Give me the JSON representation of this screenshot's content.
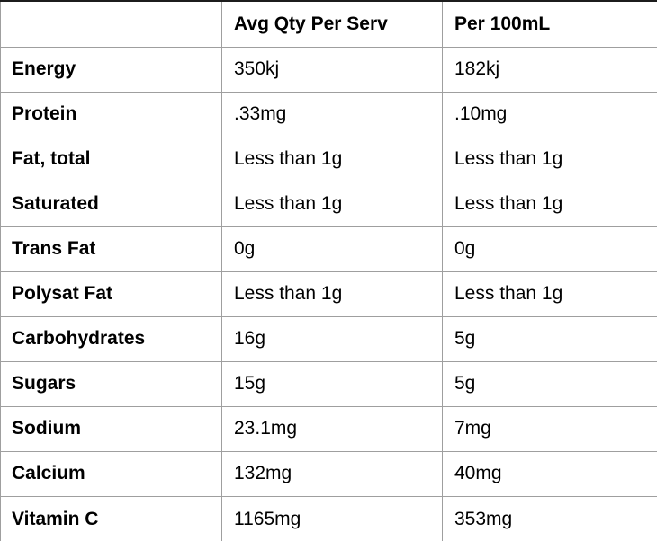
{
  "chart_data": {
    "type": "table",
    "columns": [
      "",
      "Avg Qty Per Serv",
      "Per 100mL"
    ],
    "rows": [
      {
        "label": "Energy",
        "values": [
          "350kj",
          "182kj"
        ]
      },
      {
        "label": "Protein",
        "values": [
          ".33mg",
          ".10mg"
        ]
      },
      {
        "label": "Fat, total",
        "values": [
          "Less than 1g",
          "Less than 1g"
        ]
      },
      {
        "label": "Saturated",
        "values": [
          "Less than 1g",
          "Less than 1g"
        ]
      },
      {
        "label": "Trans Fat",
        "values": [
          "0g",
          "0g"
        ]
      },
      {
        "label": "Polysat Fat",
        "values": [
          "Less than 1g",
          "Less than 1g"
        ]
      },
      {
        "label": "Carbohydrates",
        "values": [
          "16g",
          "5g"
        ]
      },
      {
        "label": "Sugars",
        "values": [
          "15g",
          "5g"
        ]
      },
      {
        "label": "Sodium",
        "values": [
          "23.1mg",
          "7mg"
        ]
      },
      {
        "label": "Calcium",
        "values": [
          "132mg",
          "40mg"
        ]
      },
      {
        "label": "Vitamin C",
        "values": [
          "1165mg",
          "353mg"
        ]
      }
    ]
  },
  "colors": {
    "grid_line": "#9f9f9f",
    "top_border": "#1c1c1c",
    "text": "#000000",
    "background": "#ffffff"
  }
}
